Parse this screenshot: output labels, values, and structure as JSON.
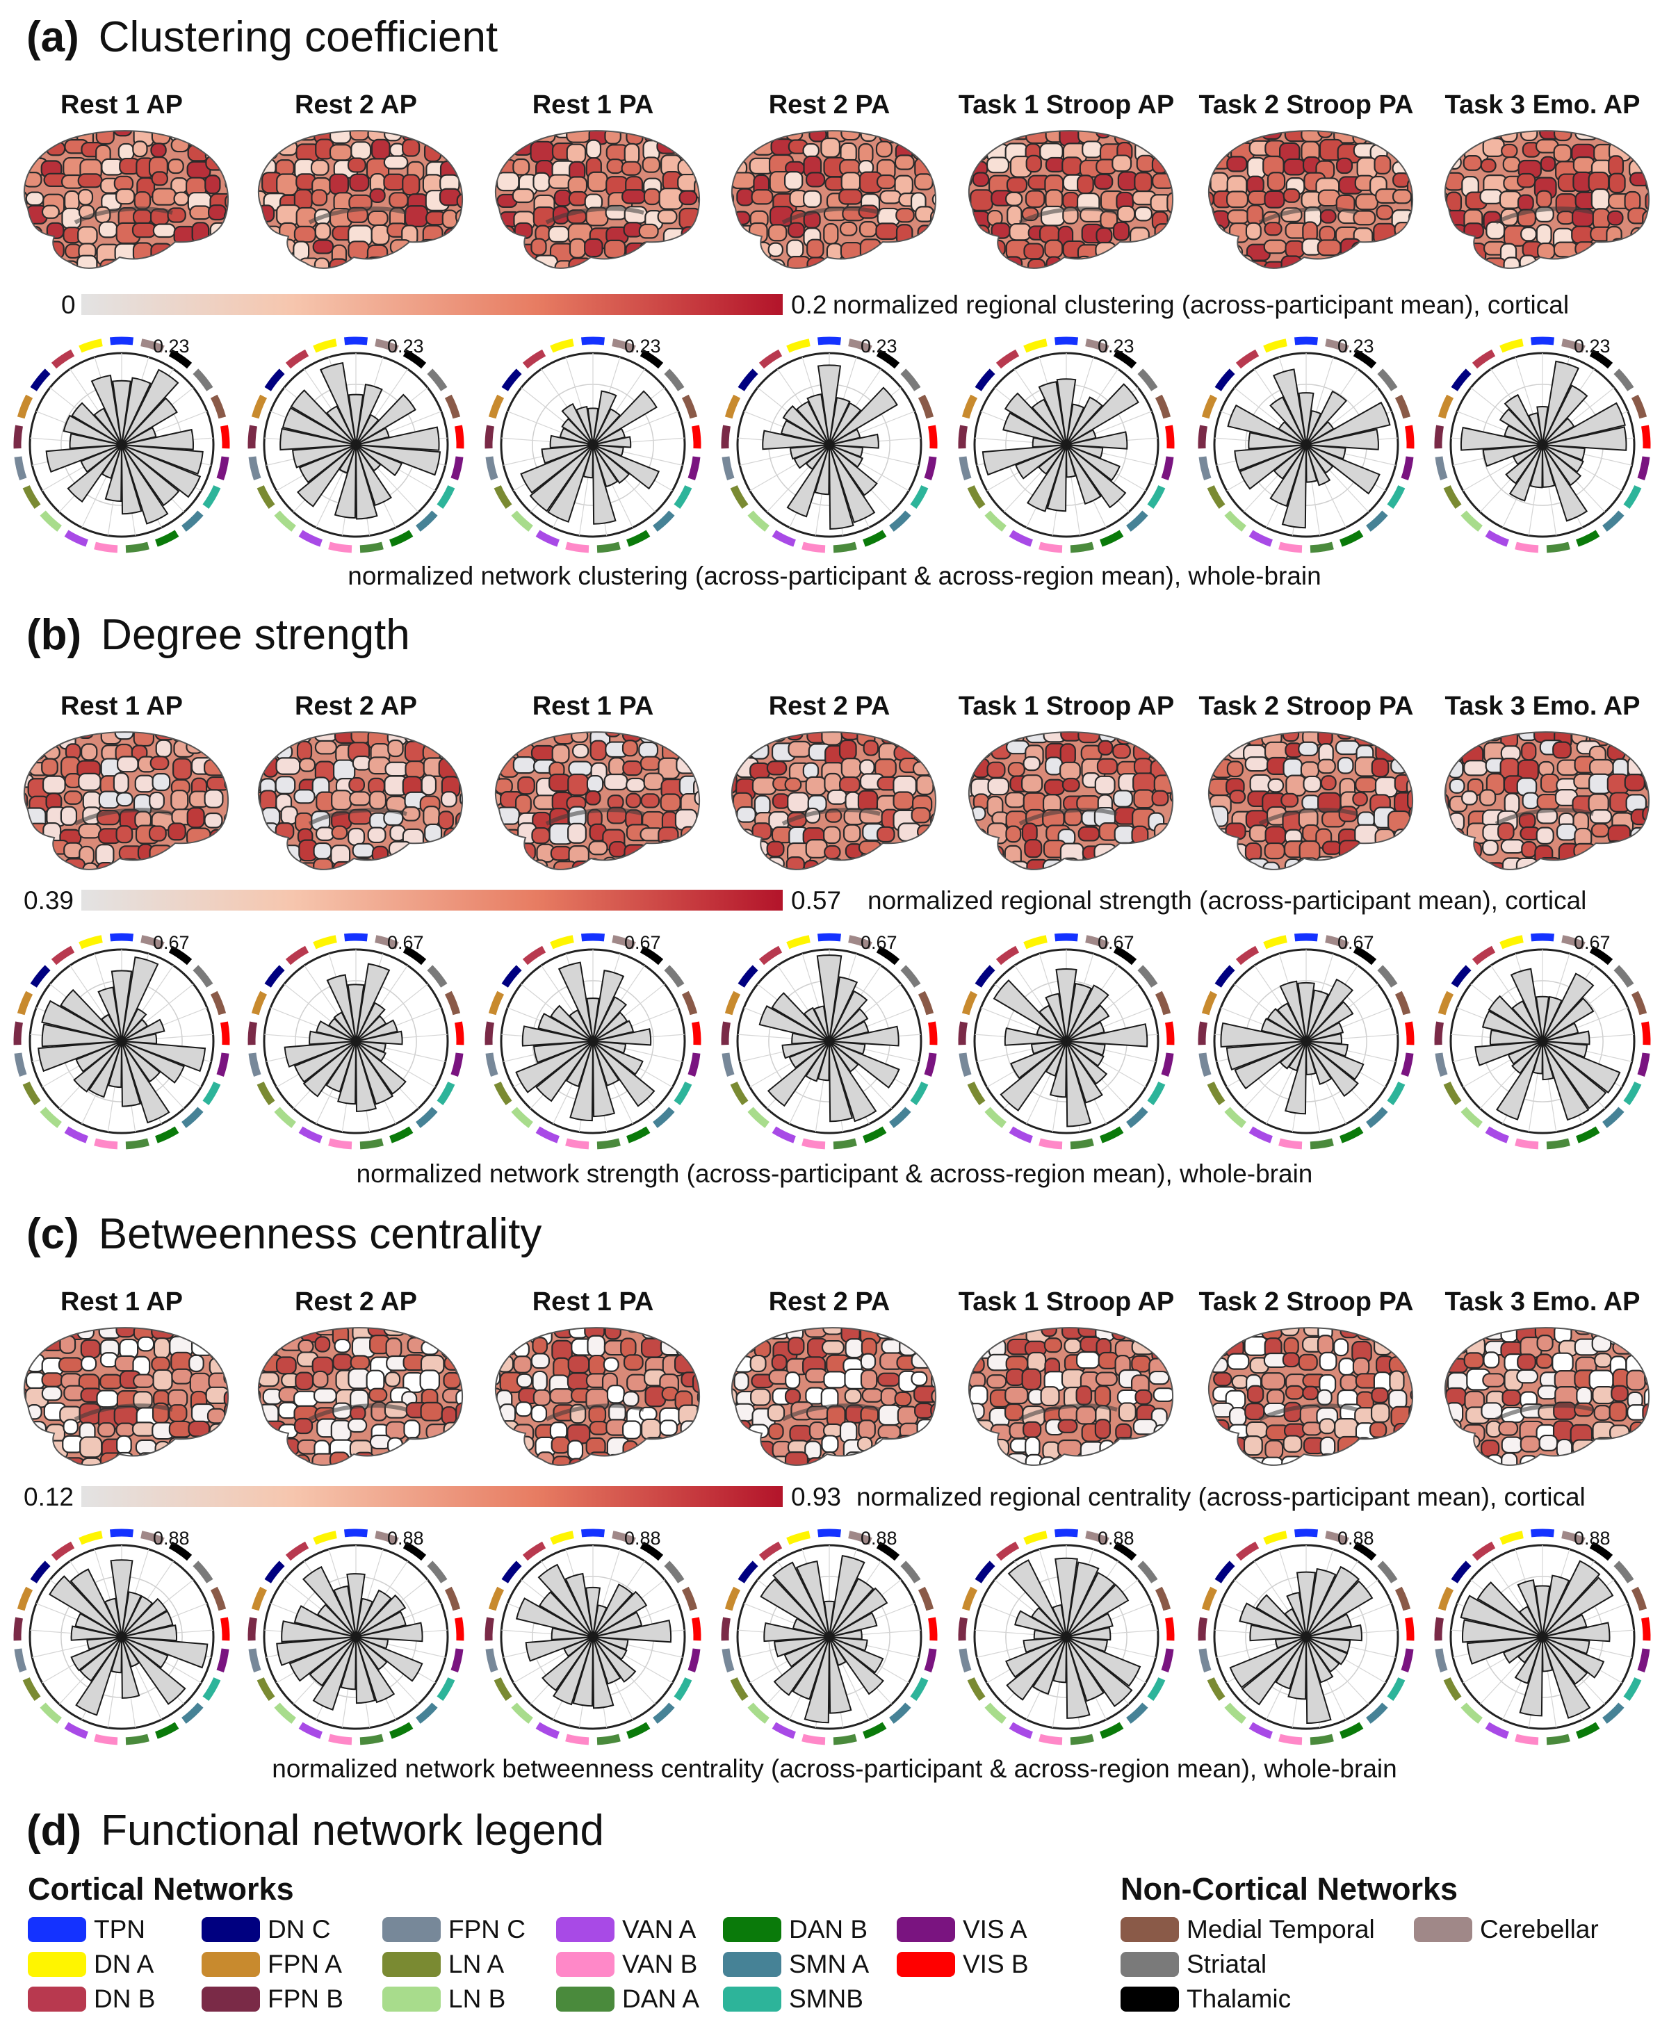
{
  "conditions": [
    "Rest 1 AP",
    "Rest 2 AP",
    "Rest 1 PA",
    "Rest 2 PA",
    "Task 1 Stroop AP",
    "Task 2 Stroop PA",
    "Task 3 Emo. AP"
  ],
  "panels": [
    {
      "id": "a",
      "letter": "(a)",
      "title": "Clustering coefficient",
      "colorbar_min": "0",
      "colorbar_max": "0.2",
      "colorbar_caption": "normalized regional clustering (across-participant mean), cortical",
      "polar_max": "0.23",
      "polar_caption": "normalized network clustering (across-participant & across-region mean), whole-brain"
    },
    {
      "id": "b",
      "letter": "(b)",
      "title": "Degree strength",
      "colorbar_min": "0.39",
      "colorbar_max": "0.57",
      "colorbar_caption": "normalized regional strength (across-participant mean), cortical",
      "polar_max": "0.67",
      "polar_caption": "normalized network strength (across-participant & across-region mean), whole-brain"
    },
    {
      "id": "c",
      "letter": "(c)",
      "title": "Betweenness centrality",
      "colorbar_min": "0.12",
      "colorbar_max": "0.93",
      "colorbar_caption": "normalized regional centrality (across-participant mean), cortical",
      "polar_max": "0.88",
      "polar_caption": "normalized network betweenness centrality (across-participant & across-region mean), whole-brain"
    }
  ],
  "legend": {
    "letter": "(d)",
    "title": "Functional network legend",
    "cortical_heading": "Cortical Networks",
    "noncortical_heading": "Non-Cortical Networks",
    "cortical": [
      {
        "label": "TPN",
        "color": "#1432ff"
      },
      {
        "label": "DN A",
        "color": "#fff500"
      },
      {
        "label": "DN B",
        "color": "#b8394f"
      },
      {
        "label": "DN C",
        "color": "#000080"
      },
      {
        "label": "FPN A",
        "color": "#c88a2e"
      },
      {
        "label": "FPN B",
        "color": "#7a2a47"
      },
      {
        "label": "FPN C",
        "color": "#778899"
      },
      {
        "label": "LN A",
        "color": "#7a8a32"
      },
      {
        "label": "LN B",
        "color": "#a8dc8c"
      },
      {
        "label": "VAN A",
        "color": "#a84ae6"
      },
      {
        "label": "VAN B",
        "color": "#ff88c8"
      },
      {
        "label": "DAN A",
        "color": "#4a8a3c"
      },
      {
        "label": "DAN B",
        "color": "#0a7a0a"
      },
      {
        "label": "SMN A",
        "color": "#468296"
      },
      {
        "label": "SMNB",
        "color": "#2db49a"
      },
      {
        "label": "VIS A",
        "color": "#7a1480"
      },
      {
        "label": "VIS B",
        "color": "#ff0000"
      }
    ],
    "noncortical": [
      {
        "label": "Medial Temporal",
        "color": "#8a5a48"
      },
      {
        "label": "Striatal",
        "color": "#7a7a7a"
      },
      {
        "label": "Thalamic",
        "color": "#000000"
      },
      {
        "label": "Cerebellar",
        "color": "#a08888"
      }
    ]
  }
}
